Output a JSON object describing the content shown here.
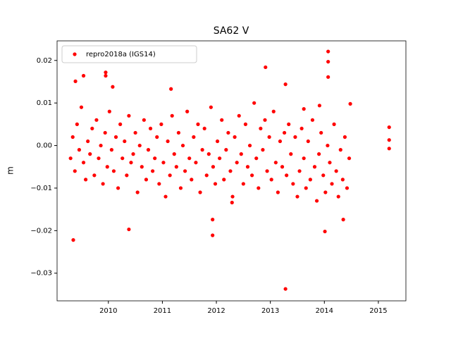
{
  "chart_data": {
    "type": "scatter",
    "title": "SA62 V",
    "y_label": "m",
    "xlim": [
      2009.05,
      2015.51
    ],
    "xticks": [
      2010,
      2011,
      2012,
      2013,
      2014,
      2015
    ],
    "ylim": [
      -0.0365,
      0.0246
    ],
    "yticks": [
      {
        "value": -0.03,
        "label": "−0.03"
      },
      {
        "value": -0.02,
        "label": "−0.02"
      },
      {
        "value": -0.01,
        "label": "−0.01"
      },
      {
        "value": 0,
        "label": "0.00"
      },
      0.01,
      0.02
    ],
    "legend": "upper left",
    "series": [
      {
        "name": "repro2018a (IGS14)",
        "color": "#ff0000",
        "x": [
          2009.3,
          2009.34,
          2009.38,
          2009.42,
          2009.46,
          2009.5,
          2009.54,
          2009.58,
          2009.62,
          2009.66,
          2009.7,
          2009.74,
          2009.78,
          2009.82,
          2009.86,
          2009.9,
          2009.94,
          2009.98,
          2010.02,
          2010.06,
          2010.1,
          2010.14,
          2010.18,
          2010.22,
          2010.26,
          2010.3,
          2010.34,
          2010.38,
          2010.42,
          2010.46,
          2010.5,
          2010.54,
          2010.58,
          2010.62,
          2010.66,
          2010.7,
          2010.74,
          2010.78,
          2010.82,
          2010.86,
          2010.9,
          2010.94,
          2010.98,
          2011.02,
          2011.06,
          2011.1,
          2011.14,
          2011.18,
          2011.22,
          2011.26,
          2011.3,
          2011.34,
          2011.38,
          2011.42,
          2011.46,
          2011.5,
          2011.54,
          2011.58,
          2011.62,
          2011.66,
          2011.7,
          2011.74,
          2011.78,
          2011.82,
          2011.86,
          2011.9,
          2011.94,
          2011.98,
          2012.02,
          2012.06,
          2012.1,
          2012.14,
          2012.18,
          2012.22,
          2012.26,
          2012.3,
          2012.34,
          2012.38,
          2012.42,
          2012.46,
          2012.5,
          2012.54,
          2012.58,
          2012.62,
          2012.66,
          2012.7,
          2012.74,
          2012.78,
          2012.82,
          2012.86,
          2012.9,
          2012.94,
          2012.98,
          2013.02,
          2013.06,
          2013.1,
          2013.14,
          2013.18,
          2013.22,
          2013.26,
          2013.3,
          2013.34,
          2013.38,
          2013.42,
          2013.46,
          2013.5,
          2013.54,
          2013.58,
          2013.62,
          2013.66,
          2013.7,
          2013.74,
          2013.78,
          2013.82,
          2013.86,
          2013.9,
          2013.94,
          2013.98,
          2014.02,
          2014.06,
          2014.1,
          2014.14,
          2014.18,
          2014.22,
          2014.26,
          2014.3,
          2014.34,
          2014.38,
          2014.42,
          2014.46,
          2009.35,
          2009.39,
          2009.95,
          2009.95,
          2009.54,
          2010.08,
          2010.38,
          2011.16,
          2011.93,
          2011.93,
          2012.91,
          2013.28,
          2013.28,
          2014.07,
          2014.07,
          2014.07,
          2014.01,
          2015.2,
          2015.2,
          2015.2,
          2013.91,
          2013.62,
          2014.48,
          2014.35,
          2012.29
        ],
        "values": [
          -0.003,
          0.002,
          -0.006,
          0.005,
          -0.001,
          0.009,
          -0.004,
          -0.008,
          0.001,
          -0.002,
          0.004,
          -0.007,
          0.006,
          -0.003,
          0.0,
          -0.009,
          0.003,
          -0.005,
          0.008,
          -0.001,
          -0.006,
          0.002,
          -0.01,
          0.005,
          -0.003,
          0.001,
          -0.007,
          0.007,
          -0.004,
          -0.002,
          0.003,
          -0.011,
          0.0,
          -0.005,
          0.006,
          -0.008,
          -0.001,
          0.004,
          -0.006,
          -0.003,
          0.002,
          -0.009,
          0.005,
          -0.004,
          -0.012,
          0.001,
          -0.007,
          0.007,
          -0.002,
          -0.005,
          0.003,
          -0.01,
          0.0,
          -0.006,
          0.008,
          -0.003,
          -0.008,
          0.002,
          -0.004,
          0.005,
          -0.011,
          -0.001,
          0.004,
          -0.007,
          -0.002,
          0.009,
          -0.005,
          -0.009,
          0.001,
          -0.003,
          0.006,
          -0.008,
          -0.001,
          0.003,
          -0.006,
          -0.012,
          0.002,
          -0.004,
          0.007,
          -0.002,
          -0.009,
          0.005,
          -0.005,
          0.0,
          -0.007,
          0.01,
          -0.003,
          -0.01,
          0.004,
          -0.001,
          0.006,
          -0.006,
          0.002,
          -0.008,
          0.008,
          -0.004,
          -0.011,
          0.001,
          -0.005,
          0.003,
          -0.007,
          0.005,
          -0.002,
          -0.009,
          0.002,
          -0.012,
          -0.006,
          0.004,
          -0.003,
          -0.01,
          0.001,
          -0.008,
          0.006,
          -0.005,
          -0.013,
          -0.002,
          0.003,
          -0.007,
          -0.011,
          0.0,
          -0.004,
          -0.009,
          0.005,
          -0.006,
          -0.012,
          -0.001,
          -0.008,
          0.002,
          -0.01,
          -0.003,
          -0.0222,
          0.0151,
          0.0172,
          0.0164,
          0.0164,
          0.0138,
          -0.0197,
          0.0133,
          -0.0174,
          -0.0211,
          0.0184,
          -0.0337,
          0.0144,
          0.0221,
          0.0197,
          0.0161,
          -0.0202,
          0.0043,
          0.0013,
          -0.0007,
          0.0094,
          0.0086,
          0.0098,
          -0.0174,
          -0.0134
        ]
      }
    ]
  }
}
